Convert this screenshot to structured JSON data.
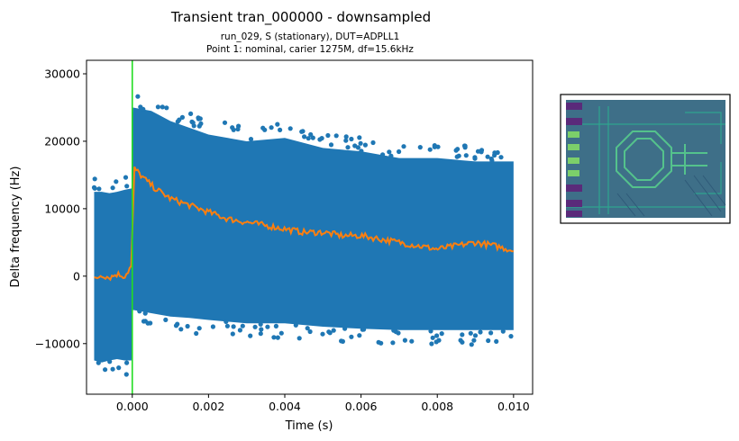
{
  "figure": {
    "title": "Transient tran_000000 - downsampled",
    "subtitle_line1": "run_029, S (stationary), DUT=ADPLL1",
    "subtitle_line2": "Point 1: nominal, carier 1275M,  df=15.6kHz"
  },
  "chart_data": {
    "type": "scatter",
    "title": "Transient tran_000000 - downsampled",
    "subtitle": "run_029, S (stationary), DUT=ADPLL1 / Point 1: nominal, carier 1275M,  df=15.6kHz",
    "xlabel": "Time (s)",
    "ylabel": "Delta frequency (Hz)",
    "xlim": [
      -0.0012,
      0.0105
    ],
    "ylim": [
      -17500,
      32000
    ],
    "x_ticks": [
      0.0,
      0.002,
      0.004,
      0.006,
      0.008,
      0.01
    ],
    "x_tick_labels": [
      "0.000",
      "0.002",
      "0.004",
      "0.006",
      "0.008",
      "0.010"
    ],
    "y_ticks": [
      -10000,
      0,
      10000,
      20000,
      30000
    ],
    "y_tick_labels": [
      "−10000",
      "0",
      "10000",
      "20000",
      "30000"
    ],
    "grid": false,
    "legend": "none",
    "event_marker": {
      "x": 0.0,
      "color": "#22dd22"
    },
    "series": [
      {
        "kind": "scatter-band",
        "color": "#1f77b4",
        "x": [
          -0.001,
          -0.0008,
          -0.0006,
          -0.0004,
          -0.0002,
          -2e-05,
          2e-05,
          0.0005,
          0.001,
          0.0015,
          0.002,
          0.003,
          0.004,
          0.005,
          0.006,
          0.007,
          0.008,
          0.009,
          0.01
        ],
        "upper": [
          12500,
          12500,
          12300,
          12500,
          12800,
          13000,
          25000,
          24500,
          23000,
          22000,
          21000,
          20000,
          20500,
          19000,
          18500,
          17500,
          17500,
          17000,
          17000
        ],
        "lower": [
          -12500,
          -12800,
          -12500,
          -12300,
          -12500,
          -12500,
          -5000,
          -5500,
          -6000,
          -6200,
          -6500,
          -7000,
          -7000,
          -7500,
          -7800,
          -8000,
          -8000,
          -8000,
          -8000
        ]
      },
      {
        "kind": "line",
        "color": "#ff7f0e",
        "x": [
          -0.001,
          -0.0008,
          -0.0006,
          -0.0004,
          -0.0002,
          -2e-05,
          5e-05,
          0.0003,
          0.0006,
          0.001,
          0.0015,
          0.002,
          0.0025,
          0.003,
          0.0035,
          0.004,
          0.0045,
          0.005,
          0.0055,
          0.006,
          0.0065,
          0.007,
          0.0075,
          0.008,
          0.0085,
          0.009,
          0.0095,
          0.01
        ],
        "y": [
          -500,
          200,
          -200,
          300,
          0,
          1500,
          16000,
          14500,
          13000,
          11500,
          10500,
          9500,
          8500,
          8000,
          7500,
          7000,
          6500,
          6500,
          6000,
          6000,
          5500,
          5000,
          4500,
          4000,
          4500,
          5000,
          4500,
          3800
        ]
      }
    ]
  }
}
